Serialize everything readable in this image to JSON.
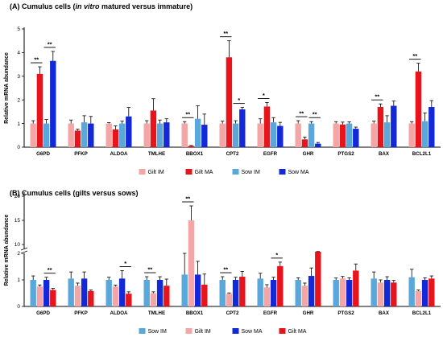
{
  "chart_data": [
    {
      "type": "bar",
      "title_prefix": "(A) Cumulus cells (",
      "title_italic": "in vitro",
      "title_suffix": " matured versus immature)",
      "ylabel": "Relative mRNA abundance",
      "xlabel": "",
      "ylim": [
        0,
        5
      ],
      "yticks": [
        0,
        1,
        2,
        3,
        4,
        5
      ],
      "categories": [
        "G6PD",
        "PFKP",
        "ALDOA",
        "TMLHE",
        "BBOX1",
        "CPT2",
        "EGFR",
        "GHR",
        "PTGS2",
        "BAX",
        "BCL2L1"
      ],
      "series": [
        {
          "name": "Gilt IM",
          "color": "#f4a6a6",
          "values": [
            1.0,
            1.0,
            1.0,
            1.0,
            1.0,
            1.0,
            1.0,
            1.0,
            1.0,
            1.0,
            1.0
          ],
          "errors": [
            0.12,
            0.15,
            0.04,
            0.12,
            0.08,
            0.1,
            0.2,
            0.12,
            0.08,
            0.1,
            0.08
          ]
        },
        {
          "name": "Gilt MA",
          "color": "#e8141c",
          "values": [
            3.1,
            0.7,
            0.75,
            1.55,
            0.05,
            3.8,
            1.72,
            0.33,
            0.96,
            1.7,
            3.2
          ],
          "errors": [
            0.3,
            0.06,
            0.15,
            0.5,
            0.02,
            0.7,
            0.17,
            0.1,
            0.1,
            0.13,
            0.35
          ]
        },
        {
          "name": "Sow IM",
          "color": "#5aa7db",
          "values": [
            1.0,
            1.05,
            1.0,
            1.0,
            1.2,
            1.0,
            1.05,
            1.0,
            1.0,
            1.05,
            1.1
          ],
          "errors": [
            0.17,
            0.28,
            0.1,
            0.15,
            0.55,
            0.12,
            0.2,
            0.08,
            0.07,
            0.28,
            0.35
          ]
        },
        {
          "name": "Sow MA",
          "color": "#1328d6",
          "values": [
            3.65,
            1.0,
            1.3,
            1.05,
            0.95,
            1.6,
            0.9,
            0.15,
            0.78,
            1.75,
            1.7
          ],
          "errors": [
            0.4,
            0.3,
            0.38,
            0.15,
            0.45,
            0.08,
            0.15,
            0.05,
            0.07,
            0.2,
            0.27
          ]
        }
      ],
      "significance": [
        {
          "category": 0,
          "pair": [
            0,
            1
          ],
          "label": "**"
        },
        {
          "category": 0,
          "pair": [
            2,
            3
          ],
          "label": "**"
        },
        {
          "category": 4,
          "pair": [
            0,
            1
          ],
          "label": "**"
        },
        {
          "category": 5,
          "pair": [
            0,
            1
          ],
          "label": "**"
        },
        {
          "category": 5,
          "pair": [
            2,
            3
          ],
          "label": "*"
        },
        {
          "category": 6,
          "pair": [
            0,
            1
          ],
          "label": "*"
        },
        {
          "category": 7,
          "pair": [
            0,
            1
          ],
          "label": "**"
        },
        {
          "category": 7,
          "pair": [
            2,
            3
          ],
          "label": "**"
        },
        {
          "category": 9,
          "pair": [
            0,
            1
          ],
          "label": "**"
        },
        {
          "category": 10,
          "pair": [
            0,
            1
          ],
          "label": "**"
        }
      ],
      "legend_position": "bottom"
    },
    {
      "type": "bar",
      "title_prefix": "(B) Cumulus cells (gilts versus sows)",
      "title_italic": "",
      "title_suffix": "",
      "ylabel": "Relative mRNA abundance",
      "xlabel": "",
      "y_axis_break": true,
      "ylim": [
        0,
        20
      ],
      "yticks": [
        0,
        1,
        2,
        10,
        15,
        20
      ],
      "categories": [
        "G6PD",
        "PFKP",
        "ALDOA",
        "TMLHE",
        "BBOX1",
        "CPT2",
        "EGFR",
        "GHR",
        "PTGS2",
        "BAX",
        "BCL2L1"
      ],
      "series": [
        {
          "name": "Sow IM",
          "color": "#5aa7db",
          "values": [
            1.0,
            1.05,
            1.0,
            1.0,
            1.2,
            1.0,
            1.05,
            1.0,
            1.0,
            1.05,
            1.1
          ],
          "errors": [
            0.15,
            0.25,
            0.1,
            0.12,
            0.8,
            0.12,
            0.2,
            0.08,
            0.07,
            0.25,
            0.3
          ]
        },
        {
          "name": "Gilt IM",
          "color": "#f4a6a6",
          "values": [
            0.75,
            0.78,
            0.75,
            0.5,
            15.0,
            0.48,
            0.72,
            0.78,
            1.05,
            0.9,
            0.58
          ]
        },
        {
          "name": "Sow MA",
          "color": "#1328d6",
          "values": [
            1.0,
            1.05,
            1.05,
            1.0,
            1.2,
            1.0,
            1.0,
            1.15,
            1.0,
            1.0,
            1.0
          ],
          "errors": [
            0.1,
            0.25,
            0.3,
            0.12,
            0.5,
            0.1,
            0.1,
            0.3,
            0.08,
            0.12,
            0.08
          ]
        },
        {
          "name": "Gilt MA",
          "color": "#e8141c",
          "values": [
            0.62,
            0.58,
            0.48,
            0.78,
            0.82,
            1.12,
            1.52,
            2.35,
            1.35,
            0.9,
            1.05
          ],
          "errors": [
            0.06,
            0.04,
            0.07,
            0.25,
            0.4,
            0.2,
            0.15,
            0.65,
            0.25,
            0.08,
            0.1
          ]
        }
      ],
      "gilt_im_errors": [
        0.06,
        0.1,
        0.05,
        0.05,
        3.0,
        0.03,
        0.1,
        0.1,
        0.08,
        0.1,
        0.04
      ],
      "significance": [
        {
          "category": 0,
          "pair": [
            2,
            3
          ],
          "label": "**"
        },
        {
          "category": 2,
          "pair": [
            2,
            3
          ],
          "label": "*"
        },
        {
          "category": 3,
          "pair": [
            0,
            1
          ],
          "label": "**"
        },
        {
          "category": 4,
          "pair": [
            0,
            1
          ],
          "label": "**"
        },
        {
          "category": 5,
          "pair": [
            0,
            1
          ],
          "label": "**"
        },
        {
          "category": 6,
          "pair": [
            2,
            3
          ],
          "label": "*"
        }
      ],
      "legend_position": "bottom"
    }
  ]
}
